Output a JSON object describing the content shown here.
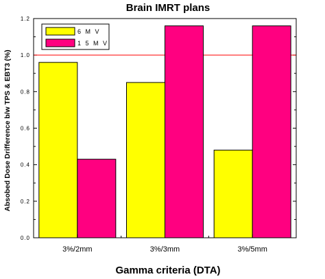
{
  "chart_data": {
    "type": "bar",
    "title": "Brain IMRT plans",
    "xlabel": "Gamma criteria (DTA)",
    "ylabel": "Absobed Dose Drifference b/w TPS & EBT3 (%)",
    "categories": [
      "3%/2mm",
      "3%/3mm",
      "3%/5mm"
    ],
    "series": [
      {
        "name": "6 M V",
        "values": [
          0.96,
          0.85,
          0.48
        ]
      },
      {
        "name": "1 5 M V",
        "values": [
          0.43,
          1.16,
          1.16
        ]
      }
    ],
    "ylim": [
      0,
      1.2
    ],
    "yticks": [
      "0.0",
      "0.2",
      "0.4",
      "0.6",
      "0.8",
      "1.0",
      "1.2"
    ],
    "reference_line": 1.0,
    "grid": false,
    "legend_position": "top-left",
    "colors": {
      "series": [
        "#ffff00",
        "#ff0080"
      ],
      "reference_line": "#ff0000",
      "axis": "#000000"
    }
  }
}
